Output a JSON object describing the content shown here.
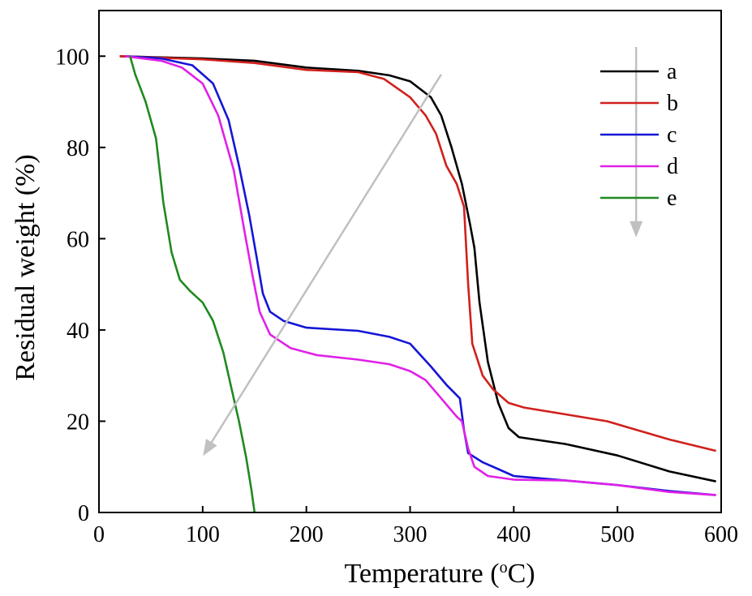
{
  "chart_data": {
    "type": "line",
    "xlabel": "Temperature (",
    "xlabel_sup": "o",
    "xlabel_unit": "C)",
    "ylabel": "Residual weight (%)",
    "xlim": [
      0,
      600
    ],
    "ylim": [
      0,
      110
    ],
    "x_ticks": [
      0,
      100,
      200,
      300,
      400,
      500,
      600
    ],
    "y_ticks": [
      0,
      20,
      40,
      60,
      80,
      100
    ],
    "grid": false,
    "legend_position": "top-right",
    "series": [
      {
        "name": "a",
        "color": "#000000",
        "points": [
          [
            20,
            100
          ],
          [
            50,
            99.8
          ],
          [
            100,
            99.5
          ],
          [
            150,
            99
          ],
          [
            200,
            97.5
          ],
          [
            250,
            96.8
          ],
          [
            280,
            95.8
          ],
          [
            300,
            94.5
          ],
          [
            320,
            91
          ],
          [
            330,
            87
          ],
          [
            340,
            80
          ],
          [
            350,
            72
          ],
          [
            358,
            63
          ],
          [
            362,
            58
          ],
          [
            367,
            46
          ],
          [
            375,
            33
          ],
          [
            385,
            24
          ],
          [
            395,
            18.5
          ],
          [
            405,
            16.5
          ],
          [
            450,
            15
          ],
          [
            500,
            12.5
          ],
          [
            550,
            9
          ],
          [
            595,
            6.8
          ]
        ]
      },
      {
        "name": "b",
        "color": "#d0201c",
        "points": [
          [
            20,
            100
          ],
          [
            100,
            99.3
          ],
          [
            150,
            98.5
          ],
          [
            200,
            97
          ],
          [
            250,
            96.5
          ],
          [
            275,
            95
          ],
          [
            300,
            91
          ],
          [
            315,
            87
          ],
          [
            325,
            83
          ],
          [
            335,
            76
          ],
          [
            345,
            72
          ],
          [
            352,
            67
          ],
          [
            356,
            50
          ],
          [
            360,
            37
          ],
          [
            370,
            30
          ],
          [
            380,
            27
          ],
          [
            395,
            24
          ],
          [
            410,
            23
          ],
          [
            450,
            21.5
          ],
          [
            490,
            20
          ],
          [
            520,
            18
          ],
          [
            550,
            16
          ],
          [
            595,
            13.5
          ]
        ]
      },
      {
        "name": "c",
        "color": "#1515d6",
        "points": [
          [
            25,
            100
          ],
          [
            60,
            99.5
          ],
          [
            90,
            98
          ],
          [
            110,
            94
          ],
          [
            125,
            86
          ],
          [
            135,
            76
          ],
          [
            145,
            65
          ],
          [
            152,
            56
          ],
          [
            158,
            48
          ],
          [
            165,
            44
          ],
          [
            178,
            42
          ],
          [
            200,
            40.5
          ],
          [
            250,
            39.8
          ],
          [
            280,
            38.5
          ],
          [
            300,
            37
          ],
          [
            320,
            32
          ],
          [
            335,
            28
          ],
          [
            348,
            25
          ],
          [
            352,
            18
          ],
          [
            356,
            13
          ],
          [
            370,
            11
          ],
          [
            385,
            9.5
          ],
          [
            400,
            8
          ],
          [
            450,
            7
          ],
          [
            500,
            6
          ],
          [
            550,
            4.7
          ],
          [
            595,
            3.8
          ]
        ]
      },
      {
        "name": "d",
        "color": "#e020e8",
        "points": [
          [
            25,
            100
          ],
          [
            60,
            99
          ],
          [
            80,
            97.5
          ],
          [
            100,
            94
          ],
          [
            115,
            87
          ],
          [
            130,
            75
          ],
          [
            140,
            62
          ],
          [
            148,
            52
          ],
          [
            155,
            44
          ],
          [
            165,
            39
          ],
          [
            185,
            36
          ],
          [
            210,
            34.5
          ],
          [
            250,
            33.5
          ],
          [
            280,
            32.5
          ],
          [
            300,
            31
          ],
          [
            315,
            29
          ],
          [
            330,
            25
          ],
          [
            345,
            21
          ],
          [
            350,
            20
          ],
          [
            356,
            14
          ],
          [
            362,
            10
          ],
          [
            375,
            8
          ],
          [
            400,
            7.2
          ],
          [
            450,
            7
          ],
          [
            500,
            6
          ],
          [
            550,
            4.5
          ],
          [
            595,
            3.8
          ]
        ]
      },
      {
        "name": "e",
        "color": "#1f8a1f",
        "points": [
          [
            30,
            100
          ],
          [
            35,
            96
          ],
          [
            45,
            90
          ],
          [
            55,
            82
          ],
          [
            62,
            68
          ],
          [
            70,
            57
          ],
          [
            78,
            51
          ],
          [
            88,
            48.5
          ],
          [
            100,
            46
          ],
          [
            110,
            42
          ],
          [
            120,
            35
          ],
          [
            128,
            27
          ],
          [
            135,
            20
          ],
          [
            142,
            12
          ],
          [
            147,
            5
          ],
          [
            150,
            0
          ]
        ]
      }
    ],
    "annotations": [
      {
        "kind": "arrow",
        "color": "#c0c0c0",
        "from": [
          330,
          96
        ],
        "to": [
          102,
          13
        ]
      },
      {
        "kind": "arrow",
        "color": "#c0c0c0",
        "from": [
          518,
          102
        ],
        "to": [
          518,
          61
        ]
      }
    ]
  }
}
